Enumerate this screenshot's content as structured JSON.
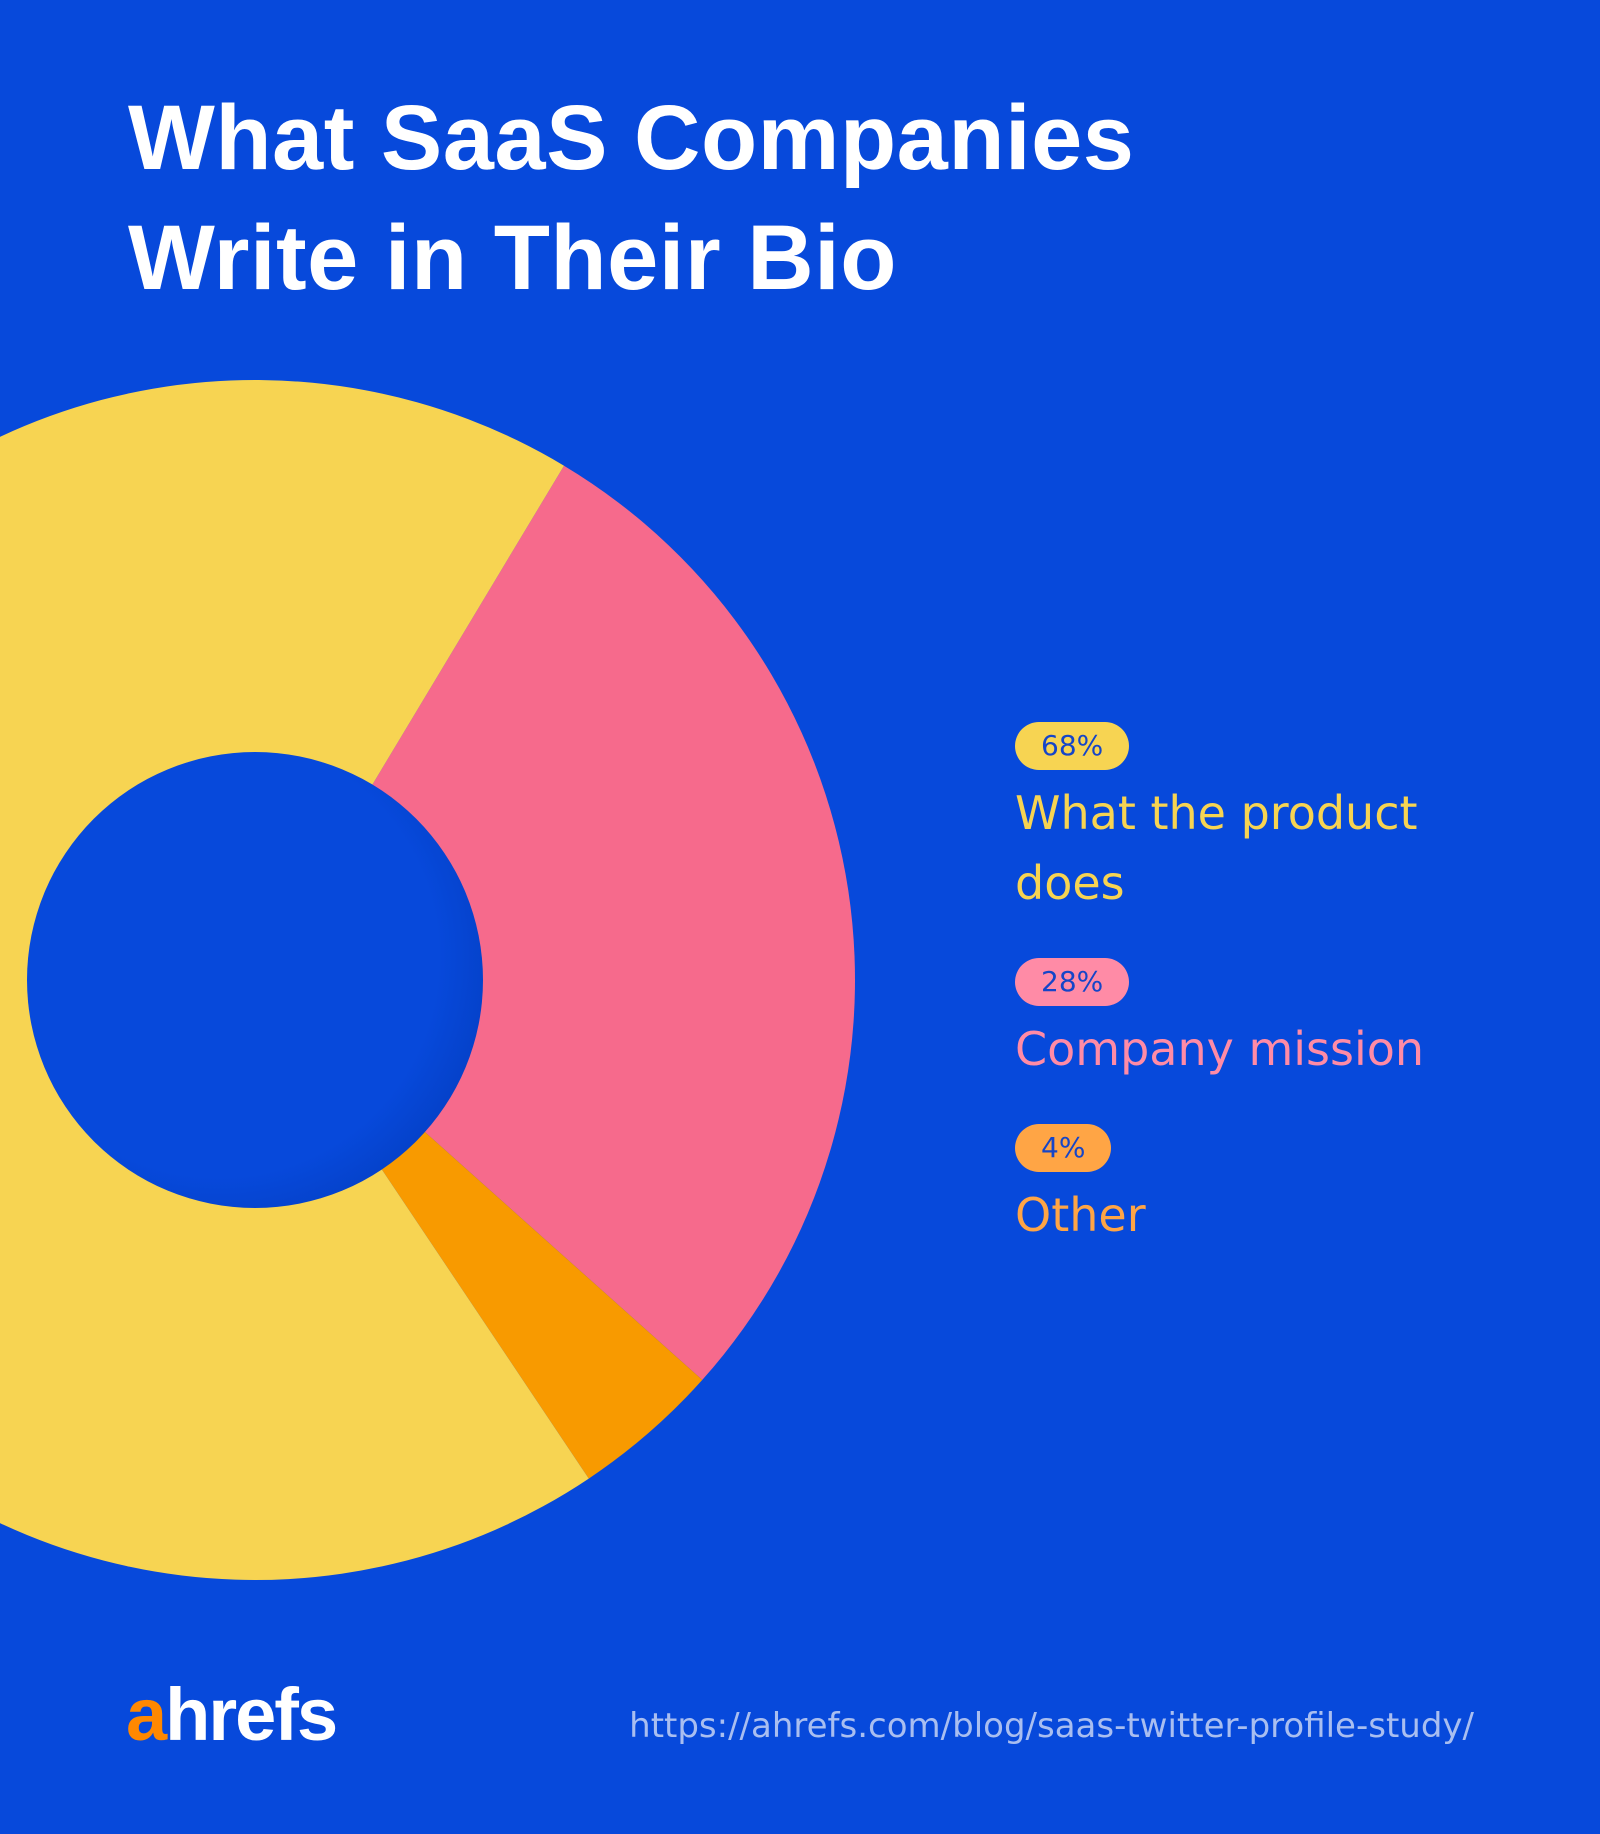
{
  "title": {
    "line1": "What SaaS Companies",
    "line2": "Write in Their Bio"
  },
  "colors": {
    "background": "#0749DB",
    "yellow": "#F7D452",
    "pink": "#F66A8C",
    "orange": "#F89A00",
    "legend_yellow": "#F7D452",
    "legend_pink": "#FF8BA6",
    "legend_orange": "#FFA545"
  },
  "legend": {
    "items": [
      {
        "badge": "68%",
        "label": "What the product does"
      },
      {
        "badge": "28%",
        "label": "Company mission"
      },
      {
        "badge": "4%",
        "label": "Other"
      }
    ]
  },
  "footer": {
    "logo_a": "a",
    "logo_rest": "hrefs",
    "url": "https://ahrefs.com/blog/saas-twitter-profile-study/"
  },
  "chart_data": {
    "type": "pie",
    "title": "What SaaS Companies Write in Their Bio",
    "donut": true,
    "categories": [
      "What the product does",
      "Company mission",
      "Other"
    ],
    "values": [
      68,
      28,
      4
    ],
    "unit": "%",
    "colors": [
      "#F7D452",
      "#F66A8C",
      "#F89A00"
    ],
    "legend_position": "right"
  }
}
